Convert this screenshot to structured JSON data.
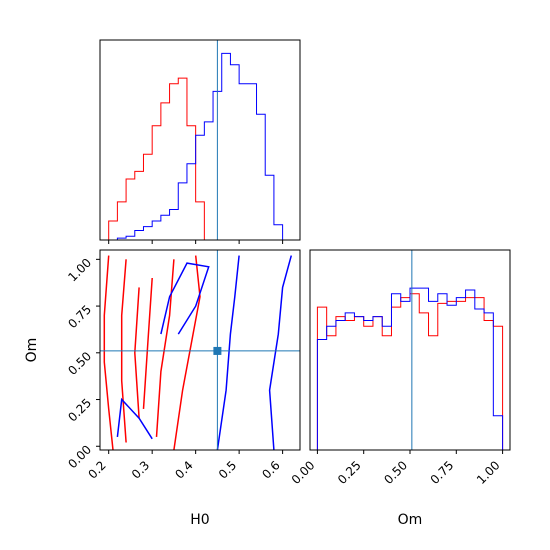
{
  "chart_data": [
    {
      "type": "step-histogram",
      "panel": "H0 marginal",
      "x_range": [
        0.18,
        0.64
      ],
      "truth": 0.45,
      "colors": {
        "red": "#ff0000",
        "blue": "#0000ff",
        "truth": "#1f77b4"
      },
      "bin_edges": [
        0.18,
        0.2,
        0.22,
        0.24,
        0.26,
        0.28,
        0.3,
        0.32,
        0.34,
        0.36,
        0.38,
        0.4,
        0.42,
        0.44,
        0.46,
        0.48,
        0.5,
        0.52,
        0.54,
        0.56,
        0.58,
        0.6,
        0.62,
        0.64
      ],
      "series": [
        {
          "color": "red",
          "counts": [
            0.0,
            0.1,
            0.2,
            0.32,
            0.36,
            0.45,
            0.6,
            0.72,
            0.82,
            0.85,
            0.6,
            0.2,
            0.0,
            0.0,
            0.0,
            0.0,
            0.0,
            0.0,
            0.0,
            0.0,
            0.0,
            0.0,
            0.0
          ]
        },
        {
          "color": "blue",
          "counts": [
            0.0,
            0.0,
            0.01,
            0.02,
            0.05,
            0.07,
            0.1,
            0.13,
            0.16,
            0.3,
            0.4,
            0.55,
            0.62,
            0.78,
            0.98,
            0.92,
            0.82,
            0.82,
            0.66,
            0.34,
            0.08,
            0.0,
            0.0
          ]
        }
      ]
    },
    {
      "type": "contour",
      "panel": "H0 vs Om 2D",
      "x_range": [
        0.18,
        0.64
      ],
      "y_range": [
        -0.02,
        1.05
      ],
      "xlabel": "H0",
      "ylabel": "Om",
      "xticks": [
        "0.2",
        "0.3",
        "0.4",
        "0.5",
        "0.6"
      ],
      "yticks": [
        "0.00",
        "0.25",
        "0.50",
        "0.75",
        "1.00"
      ],
      "truth": {
        "H0": 0.45,
        "Om": 0.51
      },
      "series": [
        {
          "color": "red",
          "contours": [
            [
              [
                0.21,
                -0.02
              ],
              [
                0.2,
                0.2
              ],
              [
                0.19,
                0.45
              ],
              [
                0.19,
                0.7
              ],
              [
                0.2,
                1.02
              ]
            ],
            [
              [
                0.35,
                -0.02
              ],
              [
                0.37,
                0.3
              ],
              [
                0.39,
                0.55
              ],
              [
                0.41,
                0.8
              ],
              [
                0.4,
                1.02
              ]
            ],
            [
              [
                0.24,
                0.02
              ],
              [
                0.23,
                0.35
              ],
              [
                0.23,
                0.7
              ],
              [
                0.24,
                1.0
              ]
            ],
            [
              [
                0.31,
                0.05
              ],
              [
                0.32,
                0.4
              ],
              [
                0.34,
                0.7
              ],
              [
                0.35,
                1.0
              ]
            ],
            [
              [
                0.27,
                0.15
              ],
              [
                0.26,
                0.5
              ],
              [
                0.27,
                0.85
              ]
            ],
            [
              [
                0.28,
                0.2
              ],
              [
                0.29,
                0.55
              ],
              [
                0.3,
                0.9
              ]
            ]
          ]
        },
        {
          "color": "blue",
          "contours": [
            [
              [
                0.45,
                -0.02
              ],
              [
                0.47,
                0.3
              ],
              [
                0.48,
                0.6
              ],
              [
                0.49,
                0.8
              ],
              [
                0.5,
                1.02
              ]
            ],
            [
              [
                0.58,
                -0.02
              ],
              [
                0.57,
                0.3
              ],
              [
                0.59,
                0.6
              ],
              [
                0.6,
                0.85
              ],
              [
                0.62,
                1.02
              ]
            ],
            [
              [
                0.22,
                0.05
              ],
              [
                0.23,
                0.25
              ],
              [
                0.27,
                0.15
              ],
              [
                0.3,
                0.04
              ]
            ],
            [
              [
                0.32,
                0.6
              ],
              [
                0.34,
                0.8
              ],
              [
                0.38,
                0.98
              ],
              [
                0.43,
                0.96
              ],
              [
                0.4,
                0.75
              ],
              [
                0.36,
                0.6
              ]
            ]
          ]
        }
      ]
    },
    {
      "type": "step-histogram",
      "panel": "Om marginal",
      "x_range": [
        -0.04,
        1.04
      ],
      "xlabel": "Om",
      "xticks": [
        "0.00",
        "0.25",
        "0.50",
        "0.75",
        "1.00"
      ],
      "truth": 0.51,
      "bin_edges": [
        0.0,
        0.05,
        0.1,
        0.15,
        0.2,
        0.25,
        0.3,
        0.35,
        0.4,
        0.45,
        0.5,
        0.55,
        0.6,
        0.65,
        0.7,
        0.75,
        0.8,
        0.85,
        0.9,
        0.95,
        1.0
      ],
      "series": [
        {
          "color": "red",
          "counts": [
            0.75,
            0.6,
            0.7,
            0.68,
            0.7,
            0.65,
            0.7,
            0.6,
            0.75,
            0.8,
            0.82,
            0.72,
            0.6,
            0.77,
            0.78,
            0.78,
            0.8,
            0.8,
            0.68,
            0.65
          ]
        },
        {
          "color": "blue",
          "counts": [
            0.58,
            0.65,
            0.68,
            0.72,
            0.7,
            0.68,
            0.7,
            0.65,
            0.82,
            0.78,
            0.85,
            0.85,
            0.78,
            0.82,
            0.76,
            0.8,
            0.84,
            0.74,
            0.72,
            0.18
          ]
        }
      ]
    }
  ]
}
